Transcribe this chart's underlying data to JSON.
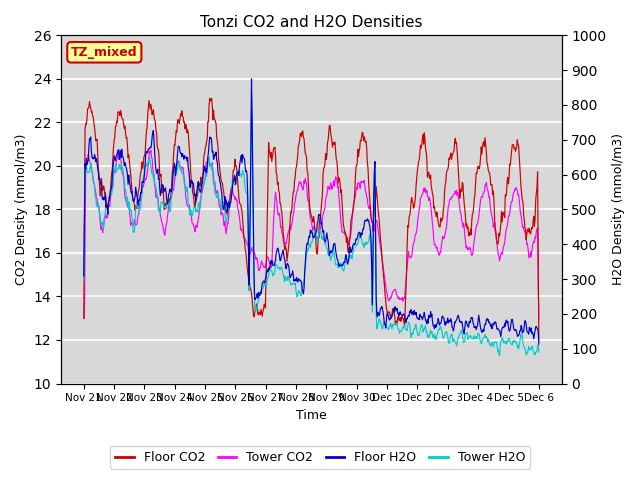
{
  "title": "Tonzi CO2 and H2O Densities",
  "xlabel": "Time",
  "ylabel_left": "CO2 Density (mmol/m3)",
  "ylabel_right": "H2O Density (mmol/m3)",
  "annotation_text": "TZ_mixed",
  "annotation_color": "#cc0000",
  "annotation_bg": "#ffff99",
  "annotation_border": "#cc0000",
  "x_tick_labels": [
    "Nov 21",
    "Nov 22",
    "Nov 23",
    "Nov 24",
    "Nov 25",
    "Nov 26",
    "Nov 27",
    "Nov 28",
    "Nov 29",
    "Nov 30",
    "Dec 1",
    "Dec 2",
    "Dec 3",
    "Dec 4",
    "Dec 5",
    "Dec 6"
  ],
  "ylim_left": [
    10,
    26
  ],
  "ylim_right": [
    0,
    1000
  ],
  "yticks_left": [
    10,
    12,
    14,
    16,
    18,
    20,
    22,
    24,
    26
  ],
  "yticks_right": [
    0,
    100,
    200,
    300,
    400,
    500,
    600,
    700,
    800,
    900,
    1000
  ],
  "colors": {
    "floor_co2": "#cc0000",
    "tower_co2": "#ff00ff",
    "floor_h2o": "#0000cc",
    "tower_h2o": "#00cccc"
  },
  "legend_labels": [
    "Floor CO2",
    "Tower CO2",
    "Floor H2O",
    "Tower H2O"
  ],
  "background_color": "#d8d8d8",
  "grid_color": "#ffffff",
  "figsize": [
    6.4,
    4.8
  ],
  "dpi": 100
}
